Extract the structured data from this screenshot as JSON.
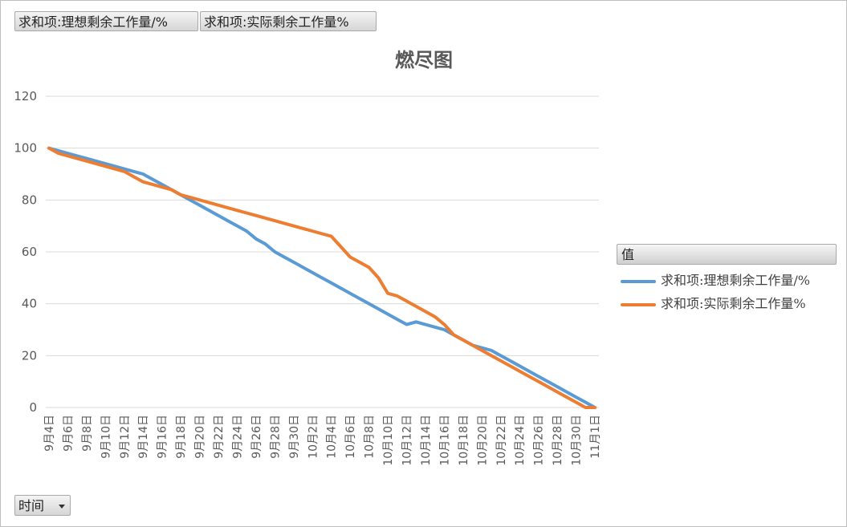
{
  "filters": {
    "field_buttons": [
      "求和项:理想剩余工作量/%",
      "求和项:实际剩余工作量%"
    ],
    "axis_filter": "时间"
  },
  "legend": {
    "header": "值"
  },
  "colors": {
    "ideal": "#5b9bd5",
    "actual": "#ed7d31",
    "grid": "#d9d9d9",
    "text": "#595959"
  },
  "chart_data": {
    "type": "line",
    "title": "燃尽图",
    "xlabel": "",
    "ylabel": "",
    "ylim": [
      0,
      120
    ],
    "yticks": [
      0,
      20,
      40,
      60,
      80,
      100,
      120
    ],
    "grid": true,
    "legend_position": "right",
    "x": [
      "9月4日",
      "9月5日",
      "9月6日",
      "9月7日",
      "9月8日",
      "9月9日",
      "9月10日",
      "9月11日",
      "9月12日",
      "9月13日",
      "9月14日",
      "9月15日",
      "9月16日",
      "9月17日",
      "9月18日",
      "9月19日",
      "9月20日",
      "9月21日",
      "9月22日",
      "9月23日",
      "9月24日",
      "9月25日",
      "9月26日",
      "9月27日",
      "9月28日",
      "9月29日",
      "9月30日",
      "10月1日",
      "10月2日",
      "10月3日",
      "10月4日",
      "10月5日",
      "10月6日",
      "10月7日",
      "10月8日",
      "10月9日",
      "10月10日",
      "10月11日",
      "10月12日",
      "10月13日",
      "10月14日",
      "10月15日",
      "10月16日",
      "10月17日",
      "10月18日",
      "10月19日",
      "10月20日",
      "10月21日",
      "10月22日",
      "10月23日",
      "10月24日",
      "10月25日",
      "10月26日",
      "10月27日",
      "10月28日",
      "10月29日",
      "10月30日",
      "10月31日",
      "11月1日"
    ],
    "x_tick_labels": [
      "9月4日",
      "9月6日",
      "9月8日",
      "9月10日",
      "9月12日",
      "9月14日",
      "9月16日",
      "9月18日",
      "9月20日",
      "9月22日",
      "9月24日",
      "9月26日",
      "9月28日",
      "9月30日",
      "10月2日",
      "10月4日",
      "10月6日",
      "10月8日",
      "10月10日",
      "10月12日",
      "10月14日",
      "10月16日",
      "10月18日",
      "10月20日",
      "10月22日",
      "10月24日",
      "10月26日",
      "10月28日",
      "10月30日",
      "11月1日"
    ],
    "series": [
      {
        "name": "求和项:理想剩余工作量/%",
        "values": [
          100,
          99,
          98,
          97,
          96,
          95,
          94,
          93,
          92,
          91,
          90,
          88,
          86,
          84,
          82,
          80,
          78,
          76,
          74,
          72,
          70,
          68,
          65,
          63,
          60,
          58,
          56,
          54,
          52,
          50,
          48,
          46,
          44,
          42,
          40,
          38,
          36,
          34,
          32,
          33,
          32,
          31,
          30,
          28,
          26,
          24,
          23,
          22,
          20,
          18,
          16,
          14,
          12,
          10,
          8,
          6,
          4,
          2,
          0
        ]
      },
      {
        "name": "求和项:实际剩余工作量%",
        "values": [
          100,
          98,
          97,
          96,
          95,
          94,
          93,
          92,
          91,
          89,
          87,
          86,
          85,
          84,
          82,
          81,
          80,
          79,
          78,
          77,
          76,
          75,
          74,
          73,
          72,
          71,
          70,
          69,
          68,
          67,
          66,
          62,
          58,
          56,
          54,
          50,
          44,
          43,
          41,
          39,
          37,
          35,
          32,
          28,
          26,
          24,
          22,
          20,
          18,
          16,
          14,
          12,
          10,
          8,
          6,
          4,
          2,
          0,
          0
        ]
      }
    ]
  }
}
